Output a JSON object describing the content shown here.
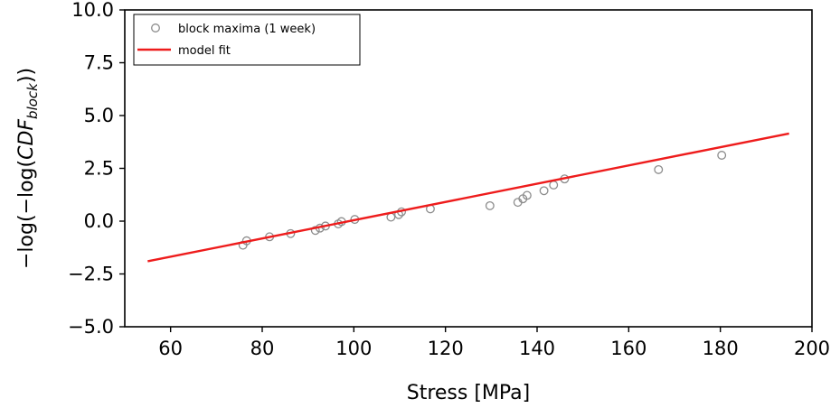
{
  "chart_data": {
    "type": "scatter",
    "xlabel": "Stress [MPa]",
    "ylabel": {
      "prefix": "−log(−log(",
      "italic": "CDF",
      "subscript": "block",
      "suffix": "))"
    },
    "xlim": [
      50,
      200
    ],
    "ylim": [
      -5.0,
      10.0
    ],
    "x_ticks": [
      60,
      80,
      100,
      120,
      140,
      160,
      180,
      200
    ],
    "y_ticks": [
      -5.0,
      -2.5,
      0.0,
      2.5,
      5.0,
      7.5,
      10.0
    ],
    "x_tick_labels": [
      "60",
      "80",
      "100",
      "120",
      "140",
      "160",
      "180",
      "200"
    ],
    "y_tick_labels": [
      "−5.0",
      "−2.5",
      "0.0",
      "2.5",
      "5.0",
      "7.5",
      "10.0"
    ],
    "grid": false,
    "legend_position": "top-left",
    "series": [
      {
        "name": "block maxima (1 week)",
        "kind": "scatter",
        "marker": "open-circle",
        "color": "#8c8c8c",
        "points": [
          [
            75.8,
            -1.14
          ],
          [
            76.6,
            -0.93
          ],
          [
            81.6,
            -0.74
          ],
          [
            86.2,
            -0.59
          ],
          [
            91.6,
            -0.44
          ],
          [
            92.6,
            -0.33
          ],
          [
            93.8,
            -0.23
          ],
          [
            96.6,
            -0.13
          ],
          [
            97.3,
            -0.02
          ],
          [
            100.2,
            0.08
          ],
          [
            108.1,
            0.19
          ],
          [
            109.8,
            0.31
          ],
          [
            110.4,
            0.44
          ],
          [
            116.7,
            0.58
          ],
          [
            129.7,
            0.73
          ],
          [
            135.8,
            0.89
          ],
          [
            136.9,
            1.06
          ],
          [
            137.8,
            1.22
          ],
          [
            141.5,
            1.44
          ],
          [
            143.6,
            1.71
          ],
          [
            146.0,
            2.0
          ],
          [
            166.5,
            2.44
          ],
          [
            180.3,
            3.12
          ]
        ]
      },
      {
        "name": "model fit",
        "kind": "line",
        "color": "#ee1c1c",
        "points": [
          [
            55,
            -1.9
          ],
          [
            195,
            4.15
          ]
        ]
      }
    ]
  }
}
